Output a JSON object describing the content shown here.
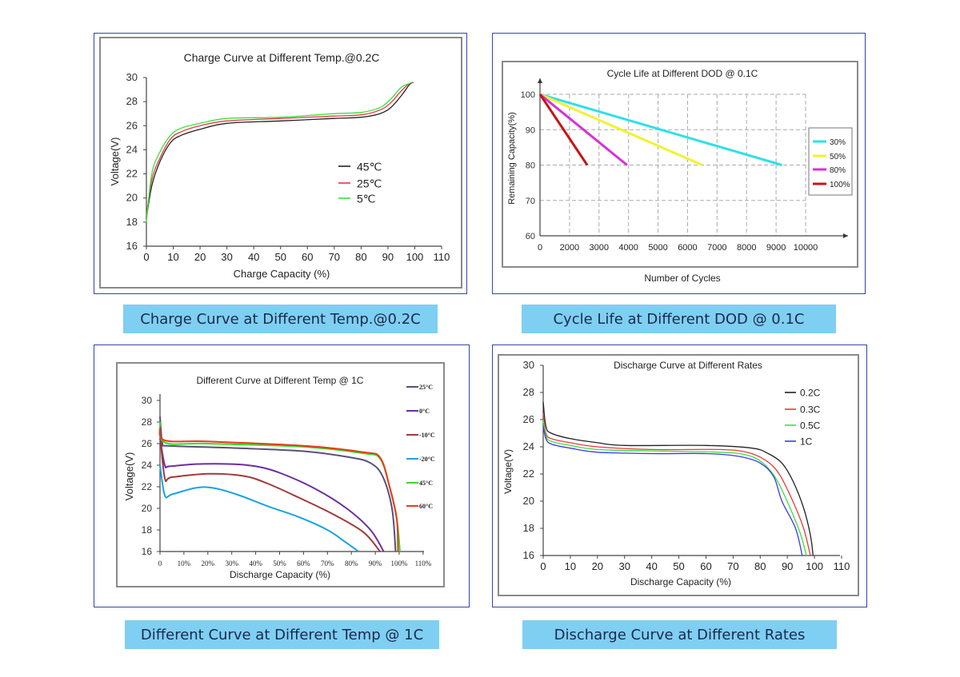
{
  "captions": [
    "Charge Curve at Different Temp.@0.2C",
    "Cycle Life at Different DOD @ 0.1C",
    "Different Curve at Different Temp @ 1C",
    "Discharge Curve at Different Rates"
  ],
  "chart_data": [
    {
      "type": "line",
      "title": "Charge Curve at Different Temp.@0.2C",
      "xlabel": "Charge Capacity (%)",
      "ylabel": "Voltage(V)",
      "xlim": [
        0,
        110
      ],
      "ylim": [
        16,
        30
      ],
      "xticks": [
        "0",
        "10",
        "20",
        "30",
        "40",
        "50",
        "60",
        "70",
        "80",
        "90",
        "100",
        "110"
      ],
      "yticks": [
        "16",
        "18",
        "20",
        "22",
        "24",
        "26",
        "28",
        "30"
      ],
      "grid": false,
      "legend": "center-right",
      "series": [
        {
          "name": "45℃",
          "color": "#222222",
          "x": [
            0,
            2,
            5,
            9,
            13,
            20,
            30,
            50,
            70,
            80,
            87,
            91,
            95,
            98,
            99.5
          ],
          "y": [
            18.3,
            21,
            23,
            24.6,
            25.2,
            25.7,
            26.2,
            26.4,
            26.6,
            26.7,
            27,
            27.5,
            28.5,
            29.4,
            29.6
          ]
        },
        {
          "name": "25℃",
          "color": "#e83a3a",
          "x": [
            0,
            2,
            5,
            9,
            13,
            20,
            30,
            50,
            70,
            80,
            87,
            91,
            95,
            98,
            99.5
          ],
          "y": [
            18.5,
            21.5,
            23.3,
            24.9,
            25.5,
            26,
            26.4,
            26.6,
            26.8,
            26.9,
            27.3,
            27.9,
            28.9,
            29.5,
            29.6
          ]
        },
        {
          "name": "5℃",
          "color": "#3de03d",
          "x": [
            0,
            2,
            5,
            9,
            13,
            20,
            30,
            50,
            70,
            80,
            87,
            91,
            95,
            98,
            99
          ],
          "y": [
            18,
            22,
            23.8,
            25.2,
            25.8,
            26.2,
            26.6,
            26.7,
            27,
            27.1,
            27.5,
            28.2,
            29.2,
            29.5,
            29.6
          ]
        }
      ]
    },
    {
      "type": "line",
      "title": "Cycle Life at Different DOD @ 0.1C",
      "xlabel": "Number of Cycles",
      "ylabel": "Remaining Capacity(%)",
      "ylim": [
        60,
        100
      ],
      "xticks": [
        "0",
        "2000",
        "3000",
        "4000",
        "5000",
        "6000",
        "7000",
        "8000",
        "9000",
        "10000"
      ],
      "yticks": [
        "60",
        "70",
        "80",
        "90",
        "100"
      ],
      "grid": true,
      "legend": "right",
      "series": [
        {
          "name": "30%",
          "color": "#2ee0e8",
          "x": [
            0,
            9200
          ],
          "y": [
            100,
            80
          ]
        },
        {
          "name": "50%",
          "color": "#f2f230",
          "x": [
            0,
            6500
          ],
          "y": [
            100,
            80
          ]
        },
        {
          "name": "80%",
          "color": "#d632d6",
          "x": [
            0,
            3950
          ],
          "y": [
            100,
            80
          ]
        },
        {
          "name": "100%",
          "color": "#c81414",
          "x": [
            0,
            2600
          ],
          "y": [
            100,
            80
          ]
        }
      ]
    },
    {
      "type": "line",
      "title": "Different Curve at Different Temp @ 1C",
      "xlabel": "Discharge Capacity (%)",
      "ylabel": "Voltage(V)",
      "xlim": [
        0,
        110
      ],
      "ylim": [
        16,
        30
      ],
      "xticks": [
        "0",
        "10%",
        "20%",
        "30%",
        "40%",
        "50%",
        "60%",
        "70%",
        "80%",
        "90%",
        "100%",
        "110%"
      ],
      "yticks": [
        "16",
        "18",
        "20",
        "22",
        "24",
        "26",
        "28",
        "30"
      ],
      "grid": false,
      "legend": "right",
      "series": [
        {
          "name": "25°C",
          "color": "#5b4e7a",
          "x": [
            0,
            1,
            3,
            30,
            60,
            80,
            88,
            93,
            97,
            98.5
          ],
          "y": [
            28.5,
            26,
            25.8,
            25.6,
            25.3,
            24.7,
            24.2,
            23,
            20,
            16
          ]
        },
        {
          "name": "0°C",
          "color": "#6a2ea0",
          "x": [
            0,
            2,
            4,
            15,
            30,
            40,
            50,
            65,
            78,
            88,
            93.5
          ],
          "y": [
            26.5,
            24,
            23.9,
            24.1,
            24.1,
            23.9,
            23.3,
            21.8,
            20,
            18,
            16
          ]
        },
        {
          "name": "-10°C",
          "color": "#a03a3a",
          "x": [
            0,
            2,
            5,
            20,
            35,
            45,
            58,
            72,
            85,
            92
          ],
          "y": [
            27,
            22.8,
            22.9,
            23.2,
            23,
            22.3,
            21,
            19.5,
            17.8,
            16
          ]
        },
        {
          "name": "-20°C",
          "color": "#1aa3e0",
          "x": [
            0,
            2,
            5,
            15,
            22,
            32,
            45,
            58,
            70,
            78,
            83
          ],
          "y": [
            24,
            21.2,
            21.3,
            21.9,
            21.9,
            21.3,
            20.2,
            19.2,
            18,
            16.8,
            16
          ]
        },
        {
          "name": "45°C",
          "color": "#33dd22",
          "x": [
            0,
            2,
            20,
            60,
            85,
            92,
            96,
            99,
            100.3
          ],
          "y": [
            28,
            26.1,
            26,
            25.7,
            25.1,
            24.6,
            22,
            19,
            16
          ]
        },
        {
          "name": "60°C",
          "color": "#e83a18",
          "x": [
            0,
            2,
            20,
            60,
            85,
            92,
            96,
            99,
            99.5
          ],
          "y": [
            27.5,
            26.3,
            26.2,
            25.8,
            25.2,
            24.7,
            22,
            19,
            16
          ]
        }
      ]
    },
    {
      "type": "line",
      "title": "Discharge Curve at Different Rates",
      "xlabel": "Discharge Capacity (%)",
      "ylabel": "Voltage(V)",
      "xlim": [
        0,
        110
      ],
      "ylim": [
        16,
        30
      ],
      "xticks": [
        "0",
        "10",
        "20",
        "30",
        "40",
        "50",
        "60",
        "70",
        "80",
        "90",
        "100",
        "110"
      ],
      "yticks": [
        "16",
        "18",
        "20",
        "22",
        "24",
        "26",
        "28",
        "30"
      ],
      "grid": false,
      "legend": "top-right",
      "series": [
        {
          "name": "0.2C",
          "color": "#222222",
          "x": [
            0,
            1,
            3,
            10,
            20,
            30,
            60,
            77,
            83,
            88,
            92,
            96,
            98.5,
            99.5
          ],
          "y": [
            27.3,
            25.5,
            25,
            24.6,
            24.3,
            24.1,
            24.1,
            23.9,
            23.5,
            22.8,
            21.5,
            19.5,
            17.5,
            16
          ]
        },
        {
          "name": "0.3C",
          "color": "#e83a3a",
          "x": [
            0,
            1,
            3,
            10,
            20,
            40,
            65,
            75,
            82,
            87,
            92,
            96,
            98.5
          ],
          "y": [
            26.5,
            25,
            24.6,
            24.3,
            24,
            23.8,
            23.8,
            23.6,
            23,
            22,
            20,
            18,
            16
          ]
        },
        {
          "name": "0.5C",
          "color": "#3de03d",
          "x": [
            0,
            1,
            3,
            10,
            20,
            40,
            65,
            75,
            81,
            86,
            91,
            95,
            97
          ],
          "y": [
            26,
            24.8,
            24.4,
            24.1,
            23.8,
            23.7,
            23.6,
            23.4,
            22.8,
            21.6,
            19.5,
            17.5,
            16
          ]
        },
        {
          "name": "1C",
          "color": "#3a3ae8",
          "x": [
            0,
            1,
            3,
            10,
            20,
            40,
            60,
            72,
            80,
            85,
            88,
            93,
            95.5
          ],
          "y": [
            25.5,
            24.6,
            24.2,
            23.9,
            23.6,
            23.5,
            23.5,
            23.3,
            22.8,
            21.8,
            20,
            18,
            16
          ]
        }
      ]
    }
  ]
}
